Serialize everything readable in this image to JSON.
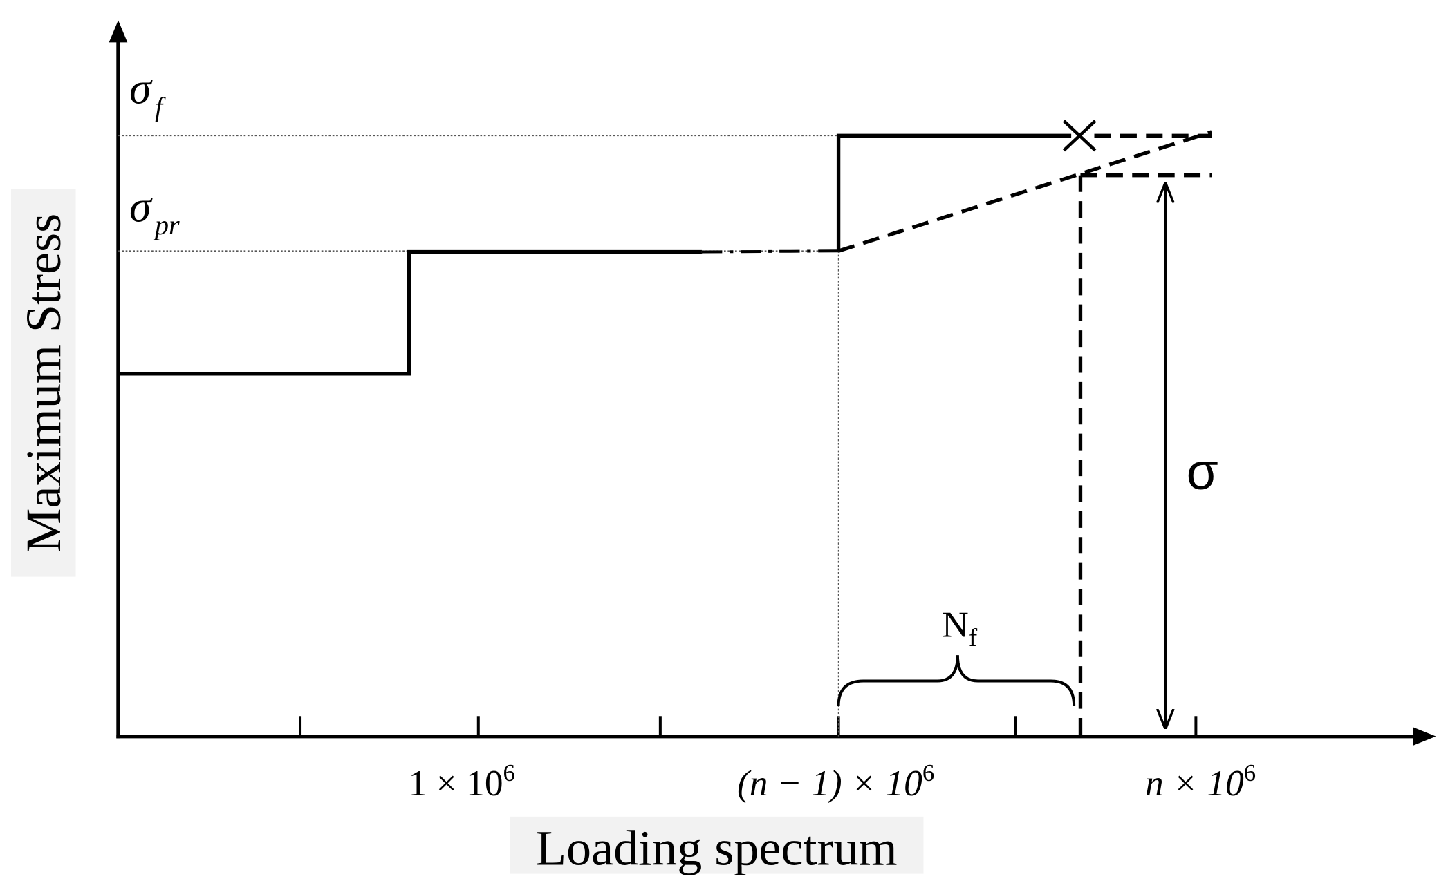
{
  "axes": {
    "y_label": "Maximum Stress",
    "x_label": "Loading spectrum"
  },
  "stress_levels": [
    {
      "symbol": "σ",
      "subscript": "f"
    },
    {
      "symbol": "σ",
      "subscript": "pr"
    }
  ],
  "x_labels": [
    {
      "base": "1 × 10",
      "exponent": "6"
    },
    {
      "base": "(n − 1) × 10",
      "exponent": "6"
    },
    {
      "base": "n × 10",
      "exponent": "6"
    }
  ],
  "annotations": {
    "cycles": {
      "symbol": "N",
      "subscript": "f"
    },
    "stress_range": "σ"
  }
}
